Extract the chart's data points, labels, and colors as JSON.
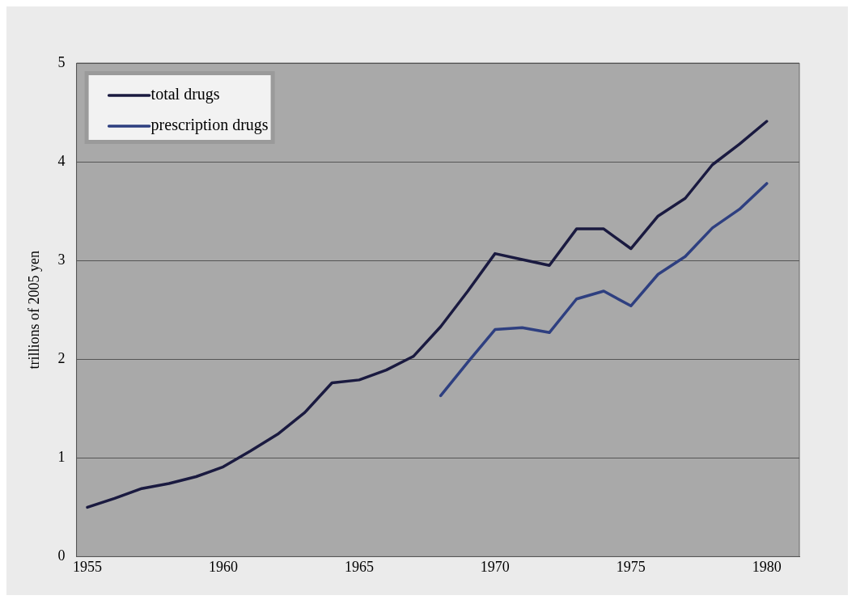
{
  "chart_data": {
    "type": "line",
    "ylabel": "trillions of 2005 yen",
    "x": [
      1955,
      1956,
      1957,
      1958,
      1959,
      1960,
      1961,
      1962,
      1963,
      1964,
      1965,
      1966,
      1967,
      1968,
      1969,
      1970,
      1971,
      1972,
      1973,
      1974,
      1975,
      1976,
      1977,
      1978,
      1979,
      1980
    ],
    "series": [
      {
        "name": "total drugs",
        "color": "#1a1a40",
        "values": [
          0.5,
          0.59,
          0.69,
          0.74,
          0.81,
          0.91,
          1.07,
          1.24,
          1.46,
          1.76,
          1.79,
          1.89,
          2.03,
          2.33,
          2.69,
          3.07,
          3.01,
          2.95,
          3.32,
          3.32,
          3.12,
          3.45,
          3.63,
          3.97,
          4.18,
          4.41
        ]
      },
      {
        "name": "prescription drugs",
        "color": "#2e3f80",
        "values": [
          null,
          null,
          null,
          null,
          null,
          null,
          null,
          null,
          null,
          null,
          null,
          null,
          null,
          1.63,
          1.97,
          2.3,
          2.32,
          2.27,
          2.61,
          2.69,
          2.54,
          2.86,
          3.04,
          3.33,
          3.52,
          3.78
        ]
      }
    ],
    "xlim": [
      1954.6,
      1981.2
    ],
    "xticks": [
      1955,
      1960,
      1965,
      1970,
      1975,
      1980
    ],
    "ylim": [
      0,
      5
    ],
    "yticks": [
      0,
      1,
      2,
      3,
      4,
      5
    ],
    "grid": "y",
    "legend": "top left",
    "marker": "none",
    "line_style": "solid"
  }
}
